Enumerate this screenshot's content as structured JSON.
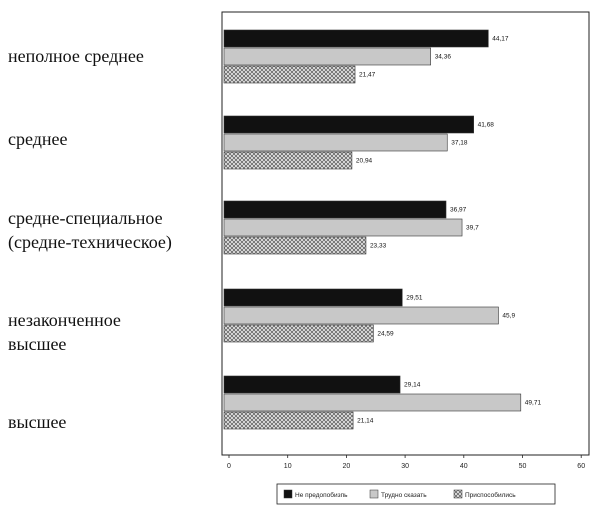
{
  "chart_data": {
    "type": "bar",
    "orientation": "horizontal",
    "categories": [
      [
        "неполное среднее"
      ],
      [
        "среднее"
      ],
      [
        "средне-специальное",
        "(средне-техническое)"
      ],
      [
        "незаконченное",
        "высшее"
      ],
      [
        "высшее"
      ]
    ],
    "series": [
      {
        "name": "Не предопобизпь",
        "values": [
          44.17,
          41.68,
          36.97,
          29.51,
          29.14
        ],
        "labels": [
          "44,17",
          "41,68",
          "36,97",
          "29,51",
          "29,14"
        ],
        "fill": "black"
      },
      {
        "name": "Трудно сказать",
        "values": [
          34.36,
          37.18,
          39.7,
          45.9,
          49.71
        ],
        "labels": [
          "34,36",
          "37,18",
          "39,7",
          "45,9",
          "49,71"
        ],
        "fill": "gray"
      },
      {
        "name": "Приспособились",
        "values": [
          21.47,
          20.94,
          23.33,
          24.59,
          21.14
        ],
        "labels": [
          "21,47",
          "20,94",
          "23,33",
          "24,59",
          "21,14"
        ],
        "fill": "crosshatch"
      }
    ],
    "xlim": [
      0,
      60
    ],
    "xticks": [
      0,
      10,
      20,
      30,
      40,
      50,
      60
    ],
    "legend_position": "bottom",
    "grid": false
  },
  "colors": {
    "black": "#111111",
    "gray": "#c8c8c8",
    "crosshatch_bg": "#e6e6e6",
    "crosshatch_line": "#555555",
    "axis": "#222222"
  }
}
